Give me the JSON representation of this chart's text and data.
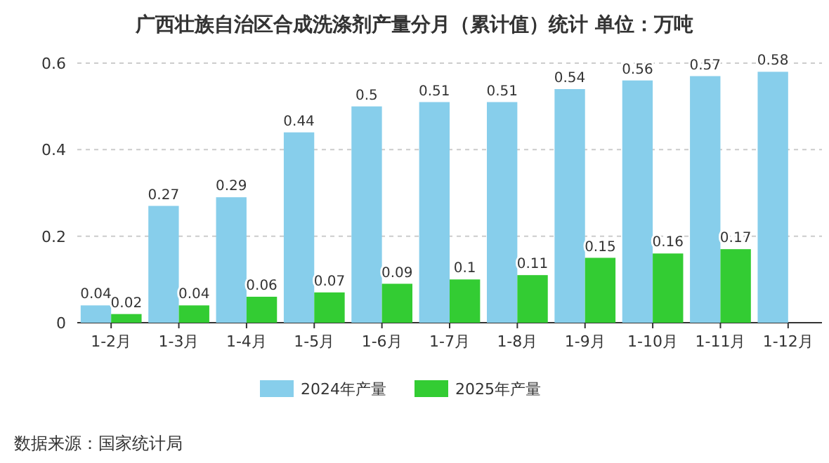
{
  "chart_data": {
    "type": "bar",
    "title": "广西壮族自治区合成洗涤剂产量分月（累计值）统计  单位：万吨",
    "categories": [
      "1-2月",
      "1-3月",
      "1-4月",
      "1-5月",
      "1-6月",
      "1-7月",
      "1-8月",
      "1-9月",
      "1-10月",
      "1-11月",
      "1-12月"
    ],
    "series": [
      {
        "name": "2024年产量",
        "color": "#87ceeb",
        "values": [
          0.04,
          0.27,
          0.29,
          0.44,
          0.5,
          0.51,
          0.51,
          0.54,
          0.56,
          0.57,
          0.58
        ]
      },
      {
        "name": "2025年产量",
        "color": "#33cc33",
        "values": [
          0.02,
          0.04,
          0.06,
          0.07,
          0.09,
          0.1,
          0.11,
          0.15,
          0.16,
          0.17,
          null
        ]
      }
    ],
    "ylim": [
      0,
      0.6
    ],
    "yticks": [
      0,
      0.2,
      0.4,
      0.6
    ],
    "grid": "y",
    "legend": "bottom",
    "data_labels": true,
    "annotations": [
      "数据来源：国家统计局"
    ]
  }
}
